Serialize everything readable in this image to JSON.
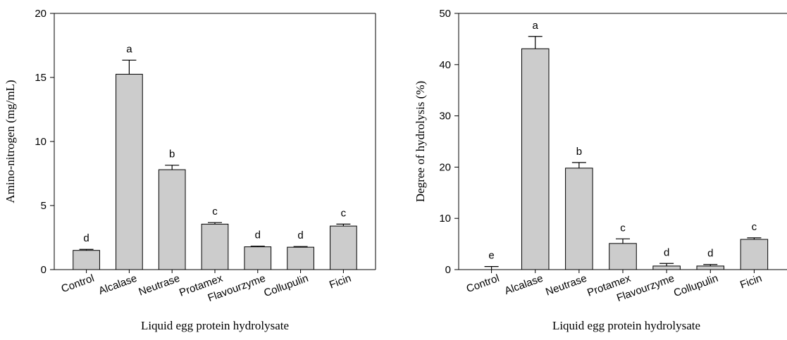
{
  "chart_data": [
    {
      "type": "bar",
      "categories": [
        "Control",
        "Alcalase",
        "Neutrase",
        "Protamex",
        "Flavourzyme",
        "Collupulin",
        "Ficin"
      ],
      "values": [
        1.5,
        15.25,
        7.8,
        3.55,
        1.78,
        1.75,
        3.4
      ],
      "error": [
        0.08,
        1.1,
        0.35,
        0.12,
        0.05,
        0.05,
        0.15
      ],
      "significance": [
        "d",
        "a",
        "b",
        "c",
        "d",
        "d",
        "c"
      ],
      "ylim": [
        0,
        20
      ],
      "yticks": [
        0,
        5,
        10,
        15,
        20
      ],
      "ylabel": "Amino-nitrogen (mg/mL)",
      "xlabel": "Liquid egg protein hydrolysate",
      "bar_color": "#cccccc"
    },
    {
      "type": "bar",
      "categories": [
        "Control",
        "Alcalase",
        "Neutrase",
        "Protamex",
        "Flavourzyme",
        "Collupulin",
        "Ficin"
      ],
      "values": [
        0,
        43.1,
        19.8,
        5.1,
        0.7,
        0.7,
        5.9
      ],
      "error": [
        0.6,
        2.4,
        1.1,
        0.9,
        0.5,
        0.3,
        0.3
      ],
      "significance": [
        "e",
        "a",
        "b",
        "c",
        "d",
        "d",
        "c"
      ],
      "ylim": [
        0,
        50
      ],
      "yticks": [
        0,
        10,
        20,
        30,
        40,
        50
      ],
      "ylabel": "Degree of hydrolysis (%)",
      "xlabel": "Liquid egg protein hydrolysate",
      "bar_color": "#cccccc"
    }
  ]
}
